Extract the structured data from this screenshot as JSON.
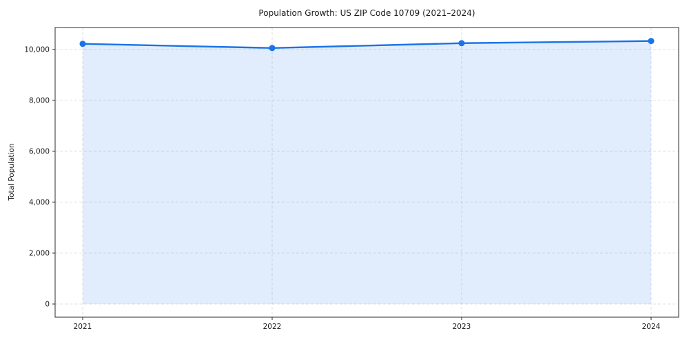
{
  "figure": {
    "background": "#ffffff"
  },
  "chart_data": {
    "type": "area",
    "title": "Population Growth: US ZIP Code 10709 (2021–2024)",
    "xlabel": "",
    "ylabel": "Total Population",
    "categories": [
      "2021",
      "2022",
      "2023",
      "2024"
    ],
    "series": [
      {
        "name": "Total Population",
        "values": [
          10220,
          10055,
          10245,
          10330
        ]
      }
    ],
    "ylim": [
      -515,
      10860
    ],
    "yticks": [
      {
        "value": 0,
        "label": "0"
      },
      {
        "value": 2000,
        "label": "2,000"
      },
      {
        "value": 4000,
        "label": "4,000"
      },
      {
        "value": 6000,
        "label": "6,000"
      },
      {
        "value": 8000,
        "label": "8,000"
      },
      {
        "value": 10000,
        "label": "10,000"
      }
    ],
    "grid": true,
    "grid_style": "dashed",
    "legend_position": "none",
    "colors": {
      "line": "#1a73e8",
      "marker": "#1a73e8",
      "fill": "rgba(26,115,232,0.13)",
      "grid": "#dcdcdc",
      "spine": "#2b2b2b",
      "text": "#1a1a1a"
    }
  }
}
